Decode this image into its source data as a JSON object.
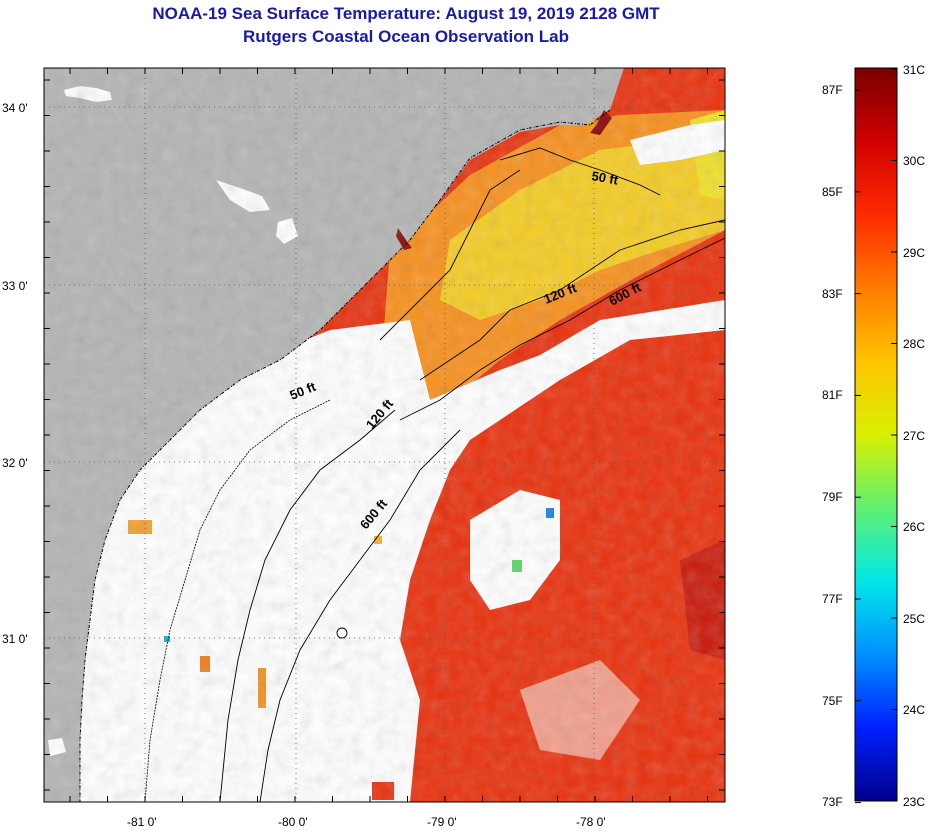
{
  "header": {
    "title": "NOAA-19 Sea Surface Temperature:  August 19, 2019 2128 GMT",
    "subtitle": "Rutgers Coastal Ocean Observation Lab"
  },
  "map": {
    "lat_ticks": [
      {
        "value": 34.0,
        "label": "34 0'"
      },
      {
        "value": 33.0,
        "label": "33 0'"
      },
      {
        "value": 32.0,
        "label": "32 0'"
      },
      {
        "value": 31.0,
        "label": "31 0'"
      }
    ],
    "lon_ticks": [
      {
        "value": -81.0,
        "label": "-81 0'"
      },
      {
        "value": -80.0,
        "label": "-80 0'"
      },
      {
        "value": -79.0,
        "label": "-79 0'"
      },
      {
        "value": -78.0,
        "label": "-78 0'"
      }
    ],
    "contours": [
      {
        "name": "isobath-50ft-north",
        "label": "50 ft"
      },
      {
        "name": "isobath-120ft-north",
        "label": "120 ft"
      },
      {
        "name": "isobath-600ft-north",
        "label": "600 ft"
      },
      {
        "name": "isobath-50ft-south",
        "label": "50 ft"
      },
      {
        "name": "isobath-120ft-south",
        "label": "120 ft"
      },
      {
        "name": "isobath-600ft-south",
        "label": "600 ft"
      }
    ],
    "colors": {
      "land": "#b4b4b4",
      "cloud": "#ffffff",
      "water_warm": "#ee3a10",
      "water_mid": "#f6a020",
      "water_cool": "#f0e020"
    }
  },
  "colorbar": {
    "celsius": [
      "31C",
      "30C",
      "29C",
      "28C",
      "27C",
      "26C",
      "25C",
      "24C",
      "23C"
    ],
    "fahrenheit": [
      "87F",
      "85F",
      "83F",
      "81F",
      "79F",
      "77F",
      "75F",
      "73F"
    ],
    "colors": [
      "#7a0000",
      "#d00000",
      "#ff2a00",
      "#ff7a00",
      "#ffc400",
      "#d8f000",
      "#60f070",
      "#00e8e8",
      "#0090ff",
      "#0020ff",
      "#00008a"
    ]
  }
}
